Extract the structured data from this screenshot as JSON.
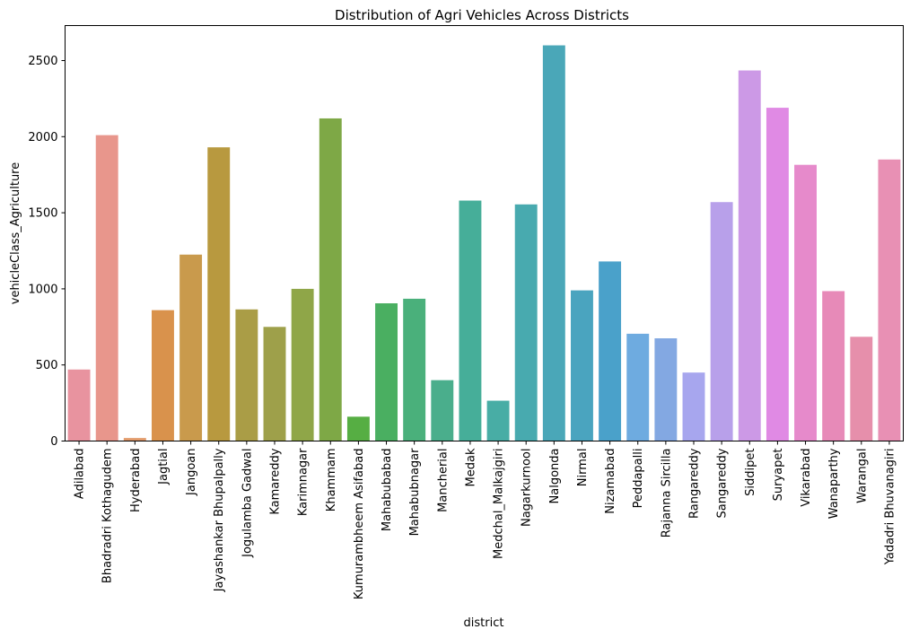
{
  "chart_data": {
    "type": "bar",
    "title": "Distribution of Agri Vehicles Across Districts",
    "xlabel": "district",
    "ylabel": "vehicleClass_Agriculture",
    "ylim": [
      0,
      2730
    ],
    "yticks": [
      0,
      500,
      1000,
      1500,
      2000,
      2500
    ],
    "ytick_labels": [
      "0",
      "500",
      "1000",
      "1500",
      "2000",
      "2500"
    ],
    "grid": false,
    "categories": [
      "Adilabad",
      "Bhadradri Kothagudem",
      "Hyderabad",
      "Jagtial",
      "Jangoan",
      "Jayashankar Bhupalpally",
      "Jogulamba Gadwal",
      "Kamareddy",
      "Karimnagar",
      "Khammam",
      "Kumurambheem Asifabad",
      "Mahabubabad",
      "Mahabubnagar",
      "Mancherial",
      "Medak",
      "Medchal_Malkajgiri",
      "Nagarkurnool",
      "Nalgonda",
      "Nirmal",
      "Nizamabad",
      "Peddapalli",
      "Rajanna Sircilla",
      "Rangareddy",
      "Sangareddy",
      "Siddipet",
      "Suryapet",
      "Vikarabad",
      "Wanaparthy",
      "Warangal",
      "Yadadri Bhuvanagiri"
    ],
    "values": [
      470,
      2010,
      20,
      860,
      1225,
      1930,
      865,
      750,
      1000,
      2120,
      160,
      905,
      935,
      400,
      1580,
      265,
      1555,
      2600,
      990,
      1180,
      705,
      675,
      450,
      1570,
      2435,
      2190,
      1815,
      985,
      685,
      1850
    ],
    "colors": [
      "#e8939f",
      "#e8968c",
      "#e39c6c",
      "#d9924c",
      "#c99a4c",
      "#b8993f",
      "#aa9d46",
      "#9ea04a",
      "#8fa648",
      "#7ea846",
      "#56ae43",
      "#4aaf61",
      "#4ab07b",
      "#4aae8c",
      "#46ae99",
      "#48ada5",
      "#48aaaf",
      "#4aa7b8",
      "#4aa4bf",
      "#4aa1ca",
      "#6eabe0",
      "#83a8e2",
      "#a7a6ee",
      "#b8a0ea",
      "#cc99e6",
      "#e08ae4",
      "#e68acb",
      "#e78ab8",
      "#e68fab",
      "#e890b4"
    ]
  }
}
